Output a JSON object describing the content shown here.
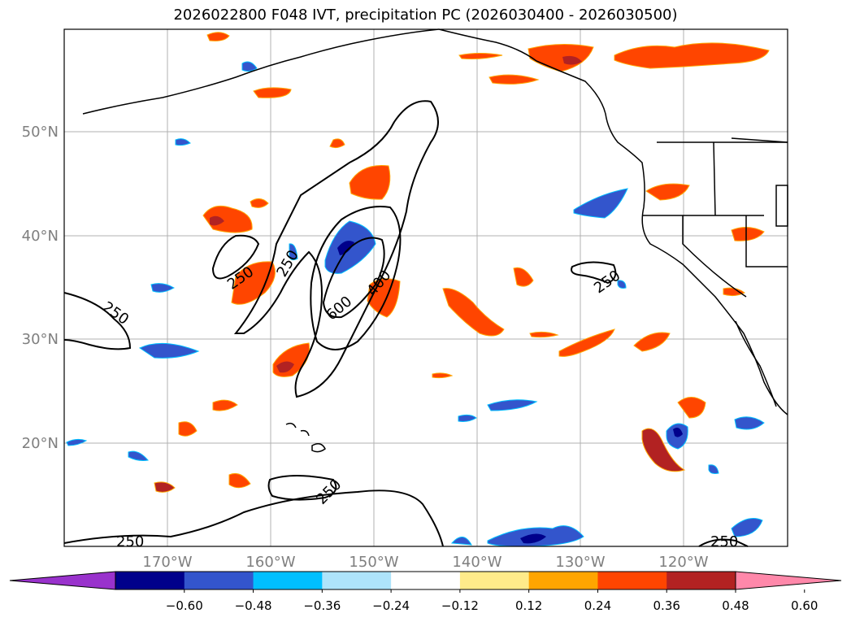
{
  "title": "2026022800 F048 IVT, precipitation PC (2026030400 - 2026030500)",
  "lat_labels": [
    "50°N",
    "40°N",
    "30°N",
    "20°N"
  ],
  "lon_labels": [
    "170°W",
    "160°W",
    "150°W",
    "140°W",
    "130°W",
    "120°W"
  ],
  "contour_labels": [
    "250",
    "250",
    "250",
    "250",
    "600",
    "400",
    "250",
    "250",
    "250",
    "250"
  ],
  "colorbar": {
    "colors": [
      "#9932cc",
      "#00008b",
      "#3355cc",
      "#00bfff",
      "#aee4fb",
      "#ffffff",
      "#ffeb8a",
      "#ffa500",
      "#ff4500",
      "#b22222",
      "#ff88aa"
    ],
    "ticks": [
      "−0.60",
      "−0.48",
      "−0.36",
      "−0.24",
      "−0.12",
      "0.12",
      "0.24",
      "0.36",
      "0.48",
      "0.60"
    ]
  }
}
